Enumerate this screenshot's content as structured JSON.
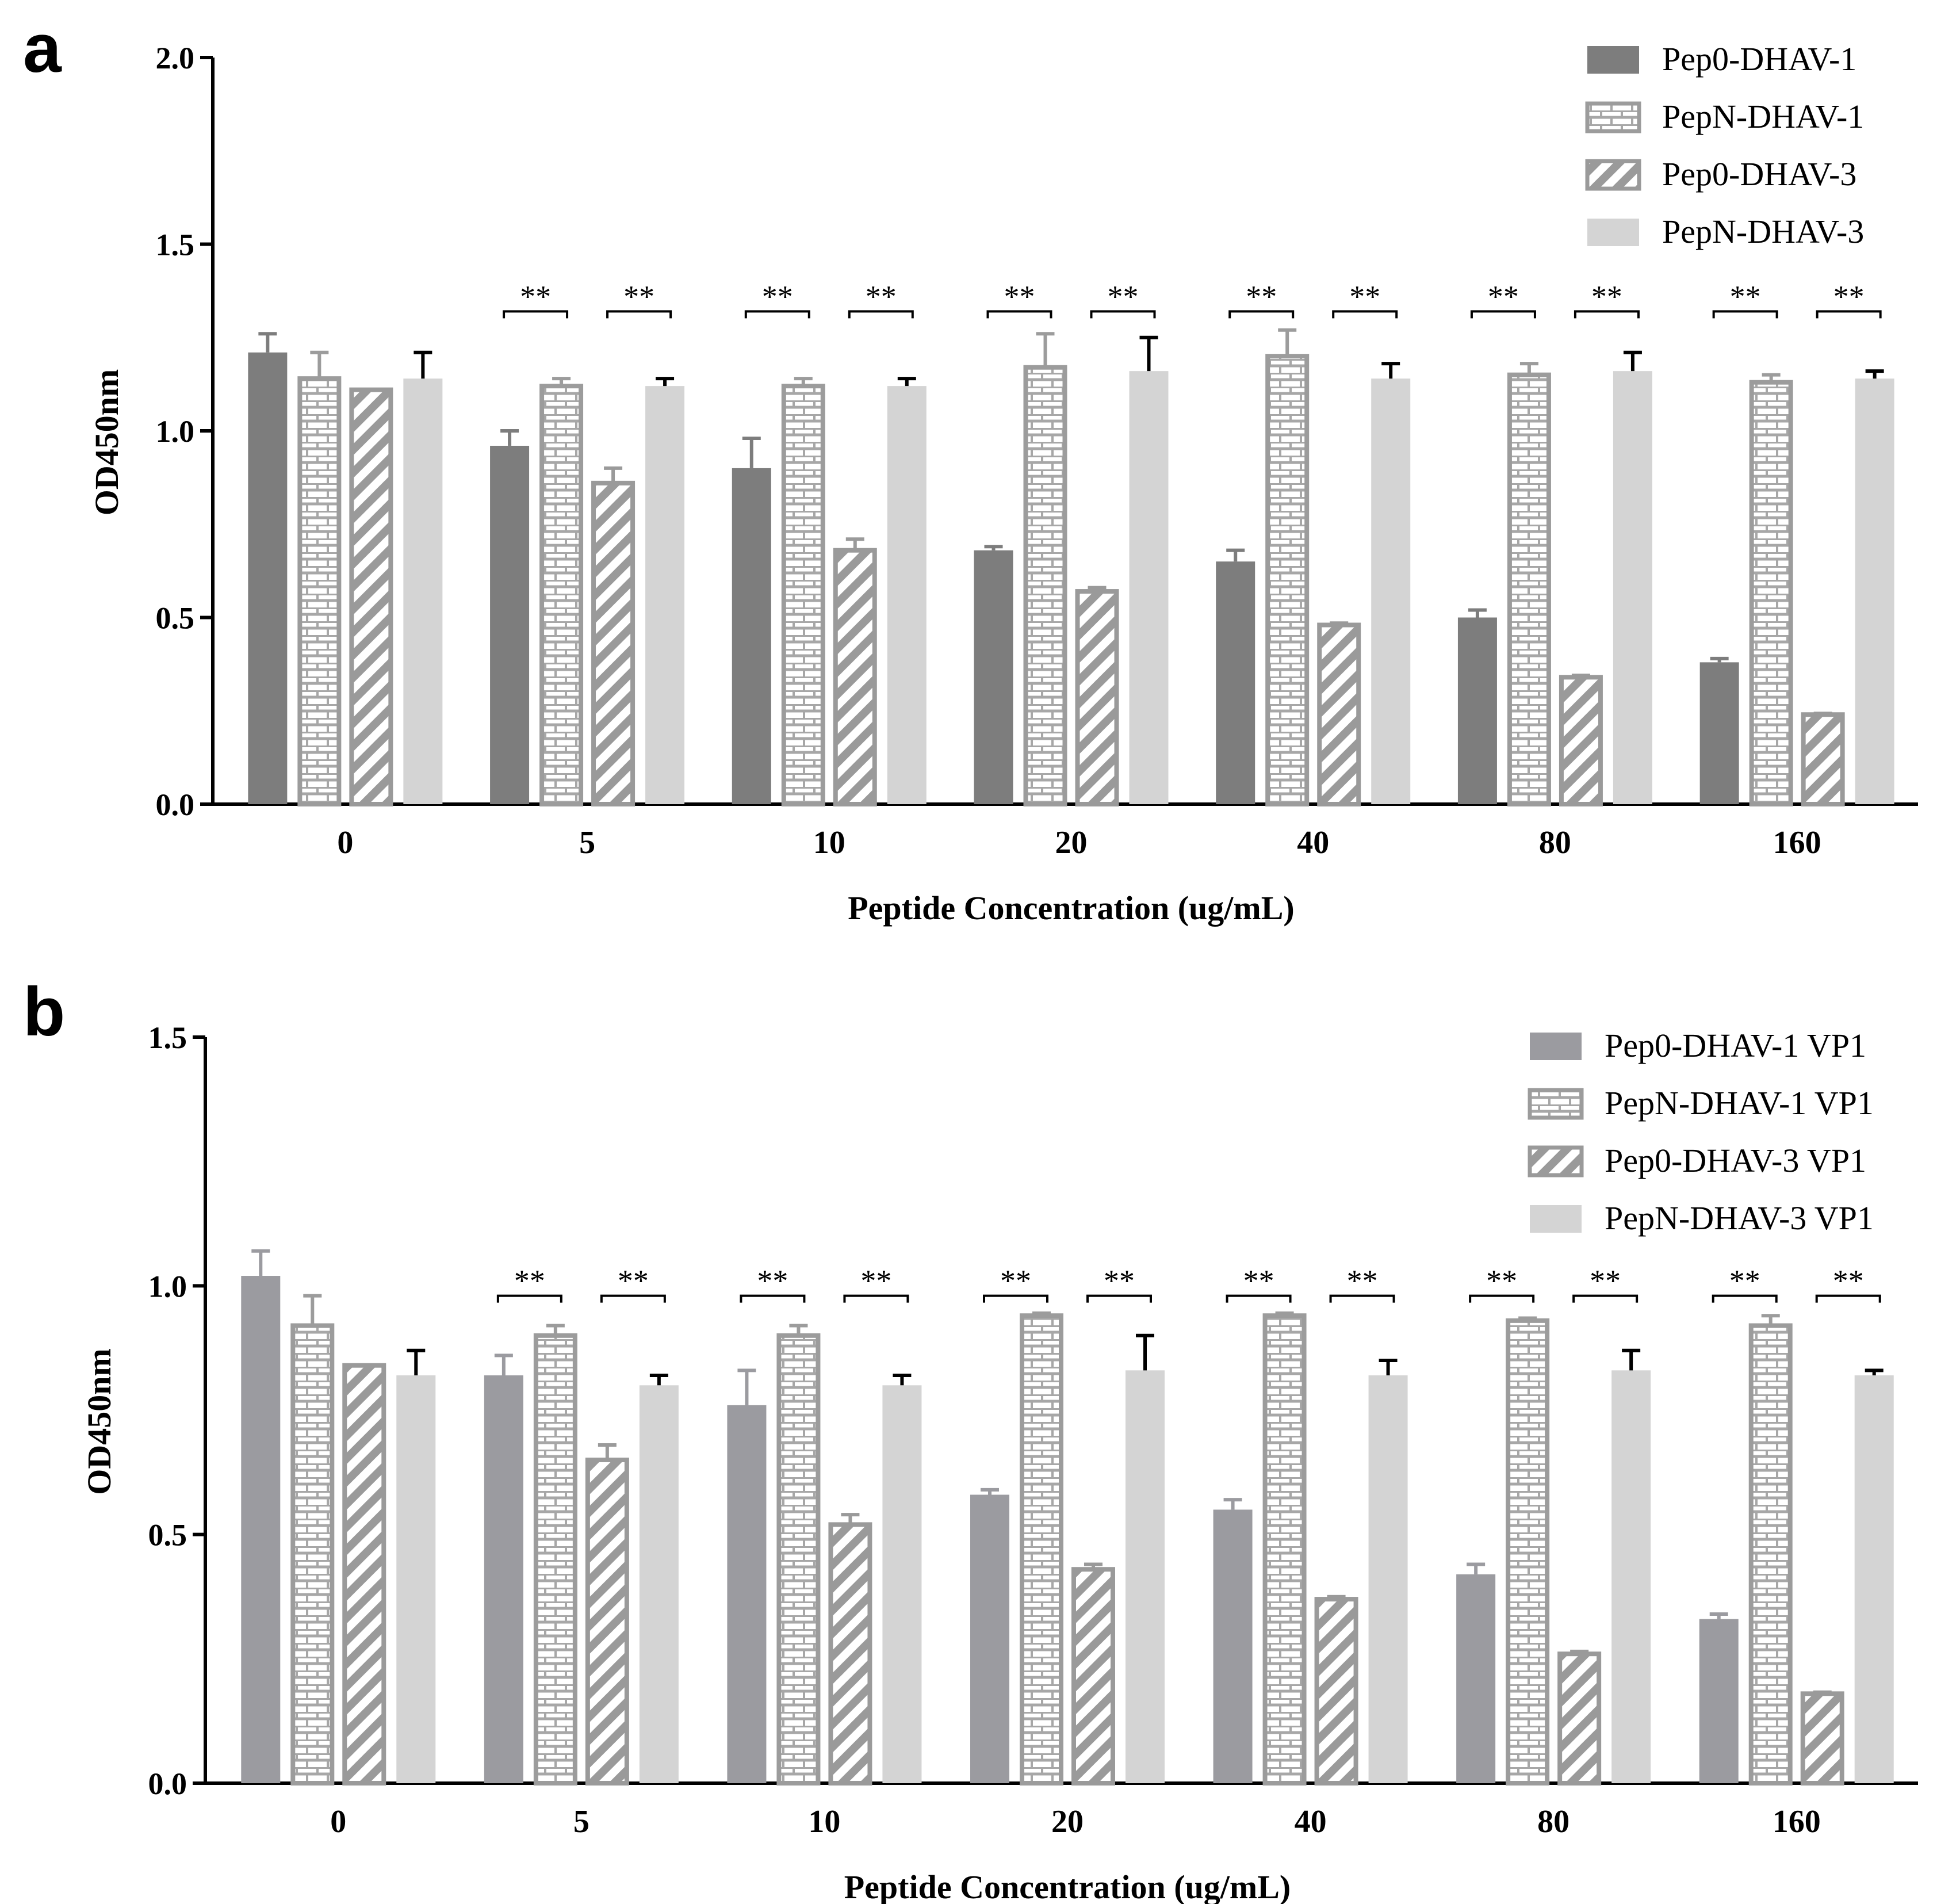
{
  "colors": {
    "pep0_dhav1": "#7d7d7d",
    "pep0_dhav1_vp1": "#9b9ba0",
    "pepN_frame": "#9c9c9c",
    "pepN_brick": "#a7a7a7",
    "pep0_dhav3": "#9a9a9a",
    "pepN_dhav3": "#d4d4d4",
    "axis": "#000000"
  },
  "chart_data": [
    {
      "panel": "a",
      "type": "bar",
      "title": "",
      "xlabel": "Peptide Concentration (ug/mL)",
      "ylabel": "OD450nm",
      "ylim": [
        0,
        2.0
      ],
      "yticks": [
        "0.0",
        "0.5",
        "1.0",
        "1.5",
        "2.0"
      ],
      "grid": false,
      "legend_position": "top-right",
      "categories": [
        "0",
        "5",
        "10",
        "20",
        "40",
        "80",
        "160"
      ],
      "series": [
        {
          "name": "Pep0-DHAV-1",
          "pattern": "solid-dark",
          "values": [
            1.21,
            0.96,
            0.9,
            0.68,
            0.65,
            0.5,
            0.38
          ],
          "errors": [
            0.05,
            0.04,
            0.08,
            0.01,
            0.03,
            0.02,
            0.01
          ]
        },
        {
          "name": "PepN-DHAV-1",
          "pattern": "brick",
          "values": [
            1.14,
            1.12,
            1.12,
            1.17,
            1.2,
            1.15,
            1.13
          ],
          "errors": [
            0.07,
            0.02,
            0.02,
            0.09,
            0.07,
            0.03,
            0.02
          ]
        },
        {
          "name": "Pep0-DHAV-3",
          "pattern": "diagonal",
          "values": [
            1.11,
            0.86,
            0.68,
            0.57,
            0.48,
            0.34,
            0.24
          ],
          "errors": [
            0.0,
            0.04,
            0.03,
            0.01,
            0.005,
            0.005,
            0.003
          ]
        },
        {
          "name": "PepN-DHAV-3",
          "pattern": "solid-light",
          "values": [
            1.14,
            1.12,
            1.12,
            1.16,
            1.14,
            1.16,
            1.14
          ],
          "errors": [
            0.07,
            0.02,
            0.02,
            0.09,
            0.04,
            0.05,
            0.02
          ]
        }
      ],
      "significance_label": "**"
    },
    {
      "panel": "b",
      "type": "bar",
      "title": "",
      "xlabel": "Peptide Concentration (ug/mL)",
      "ylabel": "OD450nm",
      "ylim": [
        0,
        1.5
      ],
      "yticks": [
        "0.0",
        "0.5",
        "1.0",
        "1.5"
      ],
      "grid": false,
      "legend_position": "top-right",
      "categories": [
        "0",
        "5",
        "10",
        "20",
        "40",
        "80",
        "160"
      ],
      "series": [
        {
          "name": "Pep0-DHAV-1 VP1",
          "pattern": "solid-dark",
          "values": [
            1.02,
            0.82,
            0.76,
            0.58,
            0.55,
            0.42,
            0.33
          ],
          "errors": [
            0.05,
            0.04,
            0.07,
            0.01,
            0.02,
            0.02,
            0.01
          ]
        },
        {
          "name": "PepN-DHAV-1 VP1",
          "pattern": "brick",
          "values": [
            0.92,
            0.9,
            0.9,
            0.94,
            0.94,
            0.93,
            0.92
          ],
          "errors": [
            0.06,
            0.02,
            0.02,
            0.005,
            0.005,
            0.005,
            0.02
          ]
        },
        {
          "name": "Pep0-DHAV-3 VP1",
          "pattern": "diagonal",
          "values": [
            0.84,
            0.65,
            0.52,
            0.43,
            0.37,
            0.26,
            0.18
          ],
          "errors": [
            0.0,
            0.03,
            0.02,
            0.01,
            0.005,
            0.005,
            0.003
          ]
        },
        {
          "name": "PepN-DHAV-3 VP1",
          "pattern": "solid-light",
          "values": [
            0.82,
            0.8,
            0.8,
            0.83,
            0.82,
            0.83,
            0.82
          ],
          "errors": [
            0.05,
            0.02,
            0.02,
            0.07,
            0.03,
            0.04,
            0.01
          ]
        }
      ],
      "significance_label": "**"
    }
  ],
  "panel_labels": [
    "a",
    "b"
  ]
}
